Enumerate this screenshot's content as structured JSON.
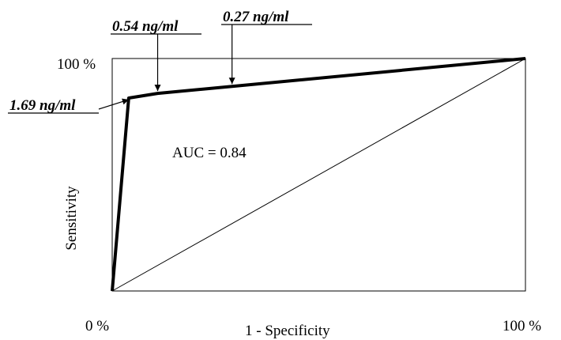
{
  "chart_data": {
    "type": "line",
    "xlabel": "1 - Specificity",
    "ylabel": "Sensitivity",
    "x_ticks": {
      "min_label": "0 %",
      "max_label": "100 %"
    },
    "y_ticks": {
      "max_label": "100 %"
    },
    "xlim": [
      0,
      1
    ],
    "ylim": [
      0,
      1
    ],
    "grid": false,
    "series": [
      {
        "points": [
          [
            0,
            0
          ],
          [
            0.04,
            0.83
          ],
          [
            0.11,
            0.85
          ],
          [
            0.29,
            0.88
          ],
          [
            1,
            1
          ]
        ],
        "color": "#000000",
        "style": "bold"
      },
      {
        "points": [
          [
            0,
            0
          ],
          [
            1,
            1
          ]
        ],
        "color": "#000000",
        "style": "thin"
      }
    ],
    "annotations": [
      {
        "text": "AUC = 0.84"
      },
      {
        "text": "1.69 ng/ml",
        "point": [
          0.04,
          0.83
        ]
      },
      {
        "text": "0.54 ng/ml",
        "point": [
          0.11,
          0.85
        ]
      },
      {
        "text": "0.27 ng/ml",
        "point": [
          0.29,
          0.88
        ]
      }
    ]
  }
}
